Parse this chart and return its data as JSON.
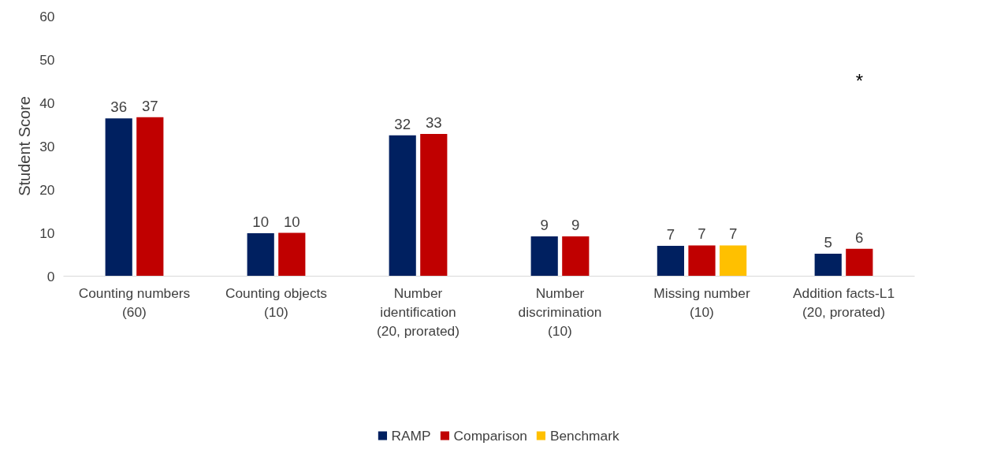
{
  "chart_data": {
    "type": "bar",
    "categories": [
      "Counting numbers (60)",
      "Counting objects (10)",
      "Number identification (20, prorated)",
      "Number discrimination (10)",
      "Missing number (10)",
      "Addition facts-L1 (20, prorated)"
    ],
    "ylabel": "Student Score",
    "series": [
      {
        "name": "RAMP",
        "color": "#002060",
        "values": [
          36.4,
          9.9,
          32.5,
          9.2,
          7.0,
          5.2
        ],
        "value_labels": [
          "36",
          "10",
          "32",
          "9",
          "7",
          "5"
        ]
      },
      {
        "name": "Comparison",
        "color": "#c00000",
        "values": [
          36.7,
          10.0,
          32.8,
          9.2,
          7.1,
          6.3
        ],
        "value_labels": [
          "37",
          "10",
          "33",
          "9",
          "7",
          "6"
        ]
      },
      {
        "name": "Benchmark",
        "color": "#ffc000",
        "values": [
          null,
          null,
          null,
          null,
          7.1,
          null
        ],
        "value_labels": [
          null,
          null,
          null,
          null,
          "7",
          null
        ]
      }
    ],
    "ylim": [
      0,
      60
    ],
    "yticks": [
      0,
      10,
      20,
      30,
      40,
      50,
      60
    ],
    "grid": false,
    "legend": "bottom",
    "annotations": [
      "*"
    ]
  }
}
